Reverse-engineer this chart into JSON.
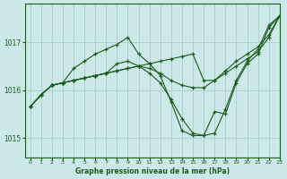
{
  "title": "Graphe pression niveau de la mer (hPa)",
  "background_color": "#cce8e8",
  "grid_color": "#aacccc",
  "line_color": "#1a5c1a",
  "xlim": [
    -0.5,
    23
  ],
  "ylim": [
    1014.6,
    1017.8
  ],
  "yticks": [
    1015,
    1016,
    1017
  ],
  "xticks": [
    0,
    1,
    2,
    3,
    4,
    5,
    6,
    7,
    8,
    9,
    10,
    11,
    12,
    13,
    14,
    15,
    16,
    17,
    18,
    19,
    20,
    21,
    22,
    23
  ],
  "lines": [
    [
      1015.65,
      1015.9,
      1016.1,
      1016.15,
      1016.45,
      1016.6,
      1016.75,
      1016.85,
      1016.95,
      1017.1,
      1016.75,
      1016.55,
      1016.3,
      1015.75,
      1015.15,
      1015.05,
      1015.05,
      1015.55,
      1015.5,
      1016.15,
      1016.55,
      1016.75,
      1017.3,
      1017.55
    ],
    [
      1015.65,
      1015.9,
      1016.1,
      1016.15,
      1016.2,
      1016.25,
      1016.3,
      1016.35,
      1016.55,
      1016.6,
      1016.5,
      1016.45,
      1016.35,
      1016.2,
      1016.1,
      1016.05,
      1016.05,
      1016.2,
      1016.4,
      1016.6,
      1016.75,
      1016.9,
      1017.15,
      1017.55
    ],
    [
      1015.65,
      1015.9,
      1016.1,
      1016.15,
      1016.2,
      1016.25,
      1016.3,
      1016.35,
      1016.4,
      1016.45,
      1016.5,
      1016.55,
      1016.6,
      1016.65,
      1016.7,
      1016.75,
      1016.2,
      1016.2,
      1016.35,
      1016.5,
      1016.65,
      1016.8,
      1017.1,
      1017.55
    ],
    [
      1015.65,
      1015.9,
      1016.1,
      1016.15,
      1016.2,
      1016.25,
      1016.3,
      1016.35,
      1016.4,
      1016.45,
      1016.5,
      1016.35,
      1016.15,
      1015.8,
      1015.4,
      1015.1,
      1015.05,
      1015.1,
      1015.6,
      1016.2,
      1016.6,
      1016.85,
      1017.35,
      1017.55
    ]
  ],
  "figsize": [
    3.2,
    2.0
  ],
  "dpi": 100
}
